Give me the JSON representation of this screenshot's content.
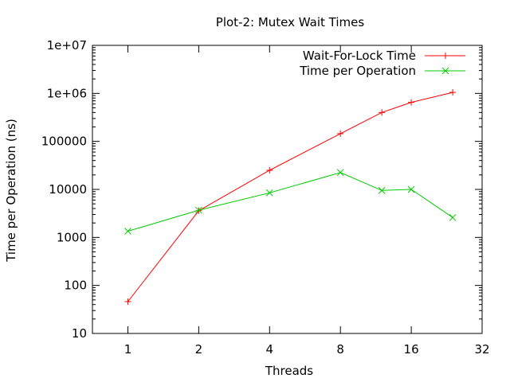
{
  "chart_data": {
    "type": "line",
    "title": "Plot-2: Mutex Wait Times",
    "xlabel": "Threads",
    "ylabel": "Time per Operation (ns)",
    "x_scale": "log2",
    "y_scale": "log10",
    "xlim": [
      0.707,
      32
    ],
    "ylim": [
      10,
      10000000
    ],
    "x_ticks": [
      {
        "value": 1,
        "label": "1"
      },
      {
        "value": 2,
        "label": "2"
      },
      {
        "value": 4,
        "label": "4"
      },
      {
        "value": 8,
        "label": "8"
      },
      {
        "value": 16,
        "label": "16"
      },
      {
        "value": 32,
        "label": "32"
      }
    ],
    "y_ticks": [
      {
        "value": 10,
        "label": "10"
      },
      {
        "value": 100,
        "label": "100"
      },
      {
        "value": 1000,
        "label": "1000"
      },
      {
        "value": 10000,
        "label": "10000"
      },
      {
        "value": 100000,
        "label": "100000"
      },
      {
        "value": 1000000,
        "label": "1e+06"
      },
      {
        "value": 10000000,
        "label": "1e+07"
      }
    ],
    "grid": false,
    "legend_position": "top-right",
    "series": [
      {
        "name": "Wait-For-Lock Time",
        "color": "#ff0000",
        "marker": "plus",
        "x": [
          1,
          2,
          4,
          8,
          12,
          16,
          24
        ],
        "y": [
          46,
          3600,
          25000,
          145000,
          400000,
          650000,
          1050000
        ]
      },
      {
        "name": "Time per Operation",
        "color": "#00cc00",
        "marker": "cross",
        "x": [
          1,
          2,
          4,
          8,
          12,
          16,
          24
        ],
        "y": [
          1350,
          3700,
          8500,
          22500,
          9500,
          10000,
          2600
        ]
      }
    ]
  }
}
